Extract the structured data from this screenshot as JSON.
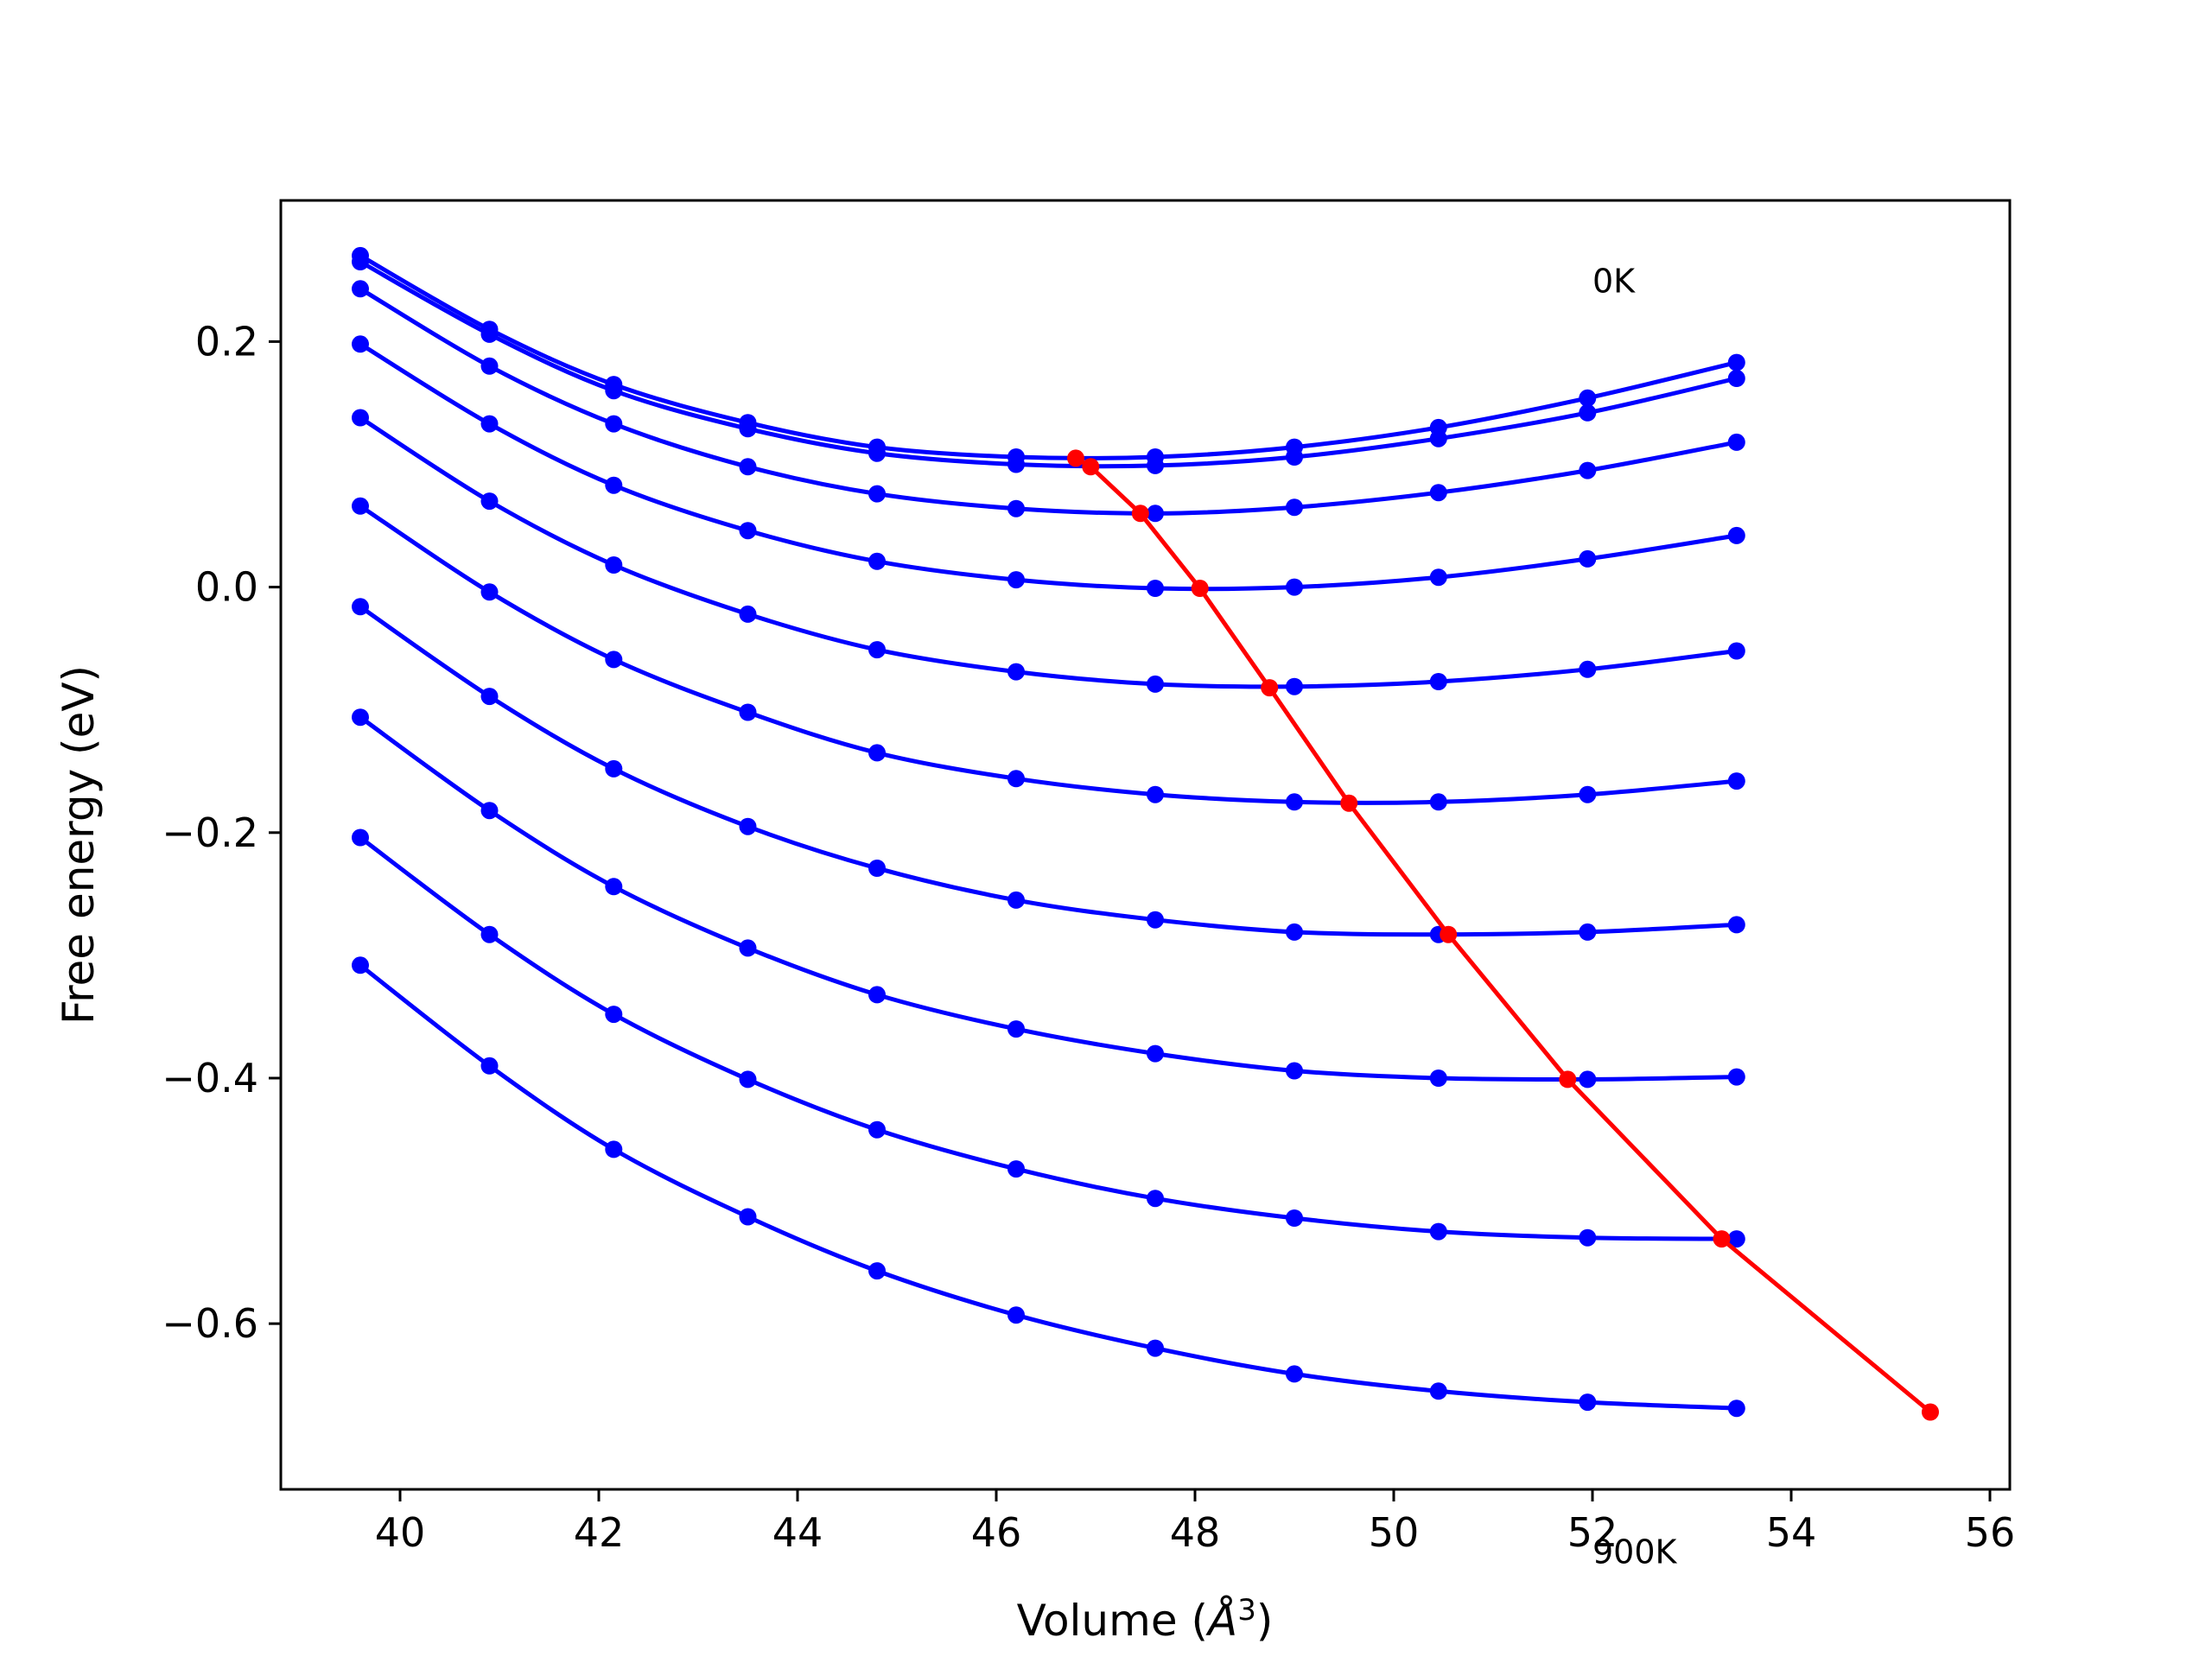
{
  "chart_data": {
    "type": "line",
    "xlabel_main": "Volume (",
    "xlabel_symbol": "Å",
    "xlabel_exp": "3",
    "xlabel_close": ")",
    "ylabel": "Free energy (eV)",
    "xlim": [
      38.8,
      56.2
    ],
    "ylim": [
      -0.735,
      0.315
    ],
    "xticks": [
      40,
      42,
      44,
      46,
      48,
      50,
      52,
      54,
      56
    ],
    "yticks": [
      0.2,
      0.0,
      -0.2,
      -0.4,
      -0.6
    ],
    "xtick_labels": [
      "40",
      "42",
      "44",
      "46",
      "48",
      "50",
      "52",
      "54",
      "56"
    ],
    "ytick_labels": [
      "0.2",
      "0.0",
      "−0.2",
      "−0.4",
      "−0.6"
    ],
    "grid": false,
    "colors": {
      "curves": "#0000ff",
      "minima": "#ff0000",
      "frame": "#000000"
    },
    "annotations": [
      {
        "text": "0K",
        "x": 52.0,
        "y": 0.24
      },
      {
        "text": "900K",
        "x": 52.0,
        "y": -0.795
      }
    ],
    "volumes": [
      39.6,
      40.9,
      42.15,
      43.5,
      44.8,
      46.2,
      47.6,
      49.0,
      50.45,
      51.95,
      53.45
    ],
    "series": [
      {
        "values": [
          0.27,
          0.21,
          0.165,
          0.134,
          0.114,
          0.106,
          0.106,
          0.114,
          0.13,
          0.154,
          0.183
        ],
        "min": [
          46.8,
          0.105
        ]
      },
      {
        "values": [
          0.265,
          0.206,
          0.16,
          0.129,
          0.109,
          0.1,
          0.099,
          0.106,
          0.121,
          0.142,
          0.17
        ],
        "min": [
          46.95,
          0.098
        ]
      },
      {
        "values": [
          0.243,
          0.18,
          0.133,
          0.098,
          0.076,
          0.064,
          0.06,
          0.065,
          0.077,
          0.095,
          0.118
        ],
        "min": [
          47.45,
          0.06
        ]
      },
      {
        "values": [
          0.198,
          0.133,
          0.083,
          0.046,
          0.021,
          0.006,
          -0.001,
          0.0,
          0.008,
          0.023,
          0.042
        ],
        "min": [
          48.05,
          -0.001
        ]
      },
      {
        "values": [
          0.138,
          0.07,
          0.018,
          -0.022,
          -0.051,
          -0.069,
          -0.079,
          -0.081,
          -0.077,
          -0.067,
          -0.052
        ],
        "min": [
          48.75,
          -0.082
        ]
      },
      {
        "values": [
          0.066,
          -0.004,
          -0.059,
          -0.102,
          -0.135,
          -0.156,
          -0.169,
          -0.175,
          -0.175,
          -0.169,
          -0.158
        ],
        "min": [
          49.55,
          -0.176
        ]
      },
      {
        "values": [
          -0.016,
          -0.089,
          -0.148,
          -0.195,
          -0.229,
          -0.255,
          -0.271,
          -0.281,
          -0.283,
          -0.281,
          -0.275
        ],
        "min": [
          50.55,
          -0.283
        ]
      },
      {
        "values": [
          -0.106,
          -0.182,
          -0.244,
          -0.294,
          -0.332,
          -0.36,
          -0.38,
          -0.394,
          -0.4,
          -0.401,
          -0.399
        ],
        "min": [
          51.75,
          -0.401
        ]
      },
      {
        "values": [
          -0.204,
          -0.283,
          -0.348,
          -0.401,
          -0.442,
          -0.474,
          -0.498,
          -0.514,
          -0.525,
          -0.53,
          -0.531
        ],
        "min": [
          53.3,
          -0.531
        ]
      },
      {
        "values": [
          -0.308,
          -0.39,
          -0.458,
          -0.513,
          -0.557,
          -0.593,
          -0.62,
          -0.641,
          -0.655,
          -0.664,
          -0.669
        ],
        "min": [
          55.4,
          -0.672
        ]
      }
    ]
  }
}
